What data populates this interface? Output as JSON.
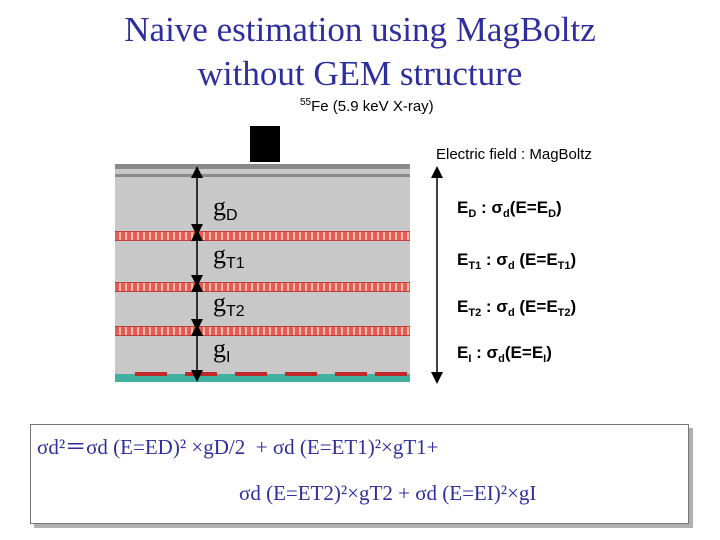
{
  "title": {
    "line1": "Naive estimation using MagBoltz",
    "line2": "without GEM structure"
  },
  "source": {
    "isotope_mass": "55",
    "label": "Fe (5.9 keV X-ray)"
  },
  "electric_field_label": "Electric field : MagBoltz",
  "gaps": [
    {
      "main": "g",
      "sub": "D"
    },
    {
      "main": "g",
      "sub": "T1"
    },
    {
      "main": "g",
      "sub": "T2"
    },
    {
      "main": "g",
      "sub": "I"
    }
  ],
  "fields": [
    {
      "e": "E",
      "e_sub": "D",
      "sep": " : ",
      "sigma": "σ",
      "sigma_sub": "d",
      "arg_open": "(E=E",
      "arg_sub": "D",
      "arg_close": ")"
    },
    {
      "e": "E",
      "e_sub": "T1",
      "sep": " : ",
      "sigma": "σ",
      "sigma_sub": "d",
      "arg_open": " (E=E",
      "arg_sub": "T1",
      "arg_close": ")"
    },
    {
      "e": "E",
      "e_sub": "T2",
      "sep": " : ",
      "sigma": "σ",
      "sigma_sub": "d",
      "arg_open": " (E=E",
      "arg_sub": "T2",
      "arg_close": ")"
    },
    {
      "e": "E",
      "e_sub": "I",
      "sep": " : ",
      "sigma": "σ",
      "sigma_sub": "d",
      "arg_open": "(E=E",
      "arg_sub": "I",
      "arg_close": ")"
    }
  ],
  "formula": {
    "line1": "σd²＝σd (E=ED)² ×gD/2  + σd (E=ET1)²×gT1+",
    "line2": "σd (E=ET2)²×gT2 + σd (E=EI)²×gI"
  },
  "colors": {
    "title": "#2e2e9e",
    "gem_copper": "#e85a5a",
    "readout_base": "#40b0a0",
    "readout_pad": "#c0282a",
    "gas": "#c8c8c8"
  }
}
